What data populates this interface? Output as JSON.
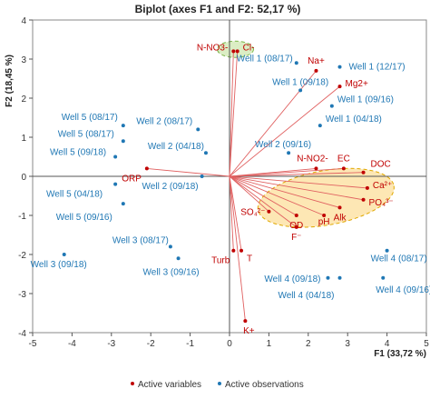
{
  "chart_data": {
    "type": "scatter",
    "title": "Biplot (axes F1 and F2: 52,17 %)",
    "xlabel": "F1 (33,72 %)",
    "ylabel": "F2 (18,45 %)",
    "xlim": [
      -5,
      5
    ],
    "ylim": [
      -4,
      4
    ],
    "xticks": [
      "-5",
      "-4",
      "-3",
      "-2",
      "-1",
      "0",
      "1",
      "2",
      "3",
      "4",
      "5"
    ],
    "yticks": [
      "-4",
      "-3",
      "-2",
      "-1",
      "0",
      "1",
      "2",
      "3",
      "4"
    ],
    "grid": false,
    "legend_position": "bottom",
    "series": [
      {
        "name": "Active variables",
        "color": "#c00000",
        "points": [
          {
            "label": "N-NO3-",
            "x": 0.1,
            "y": 3.2
          },
          {
            "label": "Cl-",
            "x": 0.2,
            "y": 3.2
          },
          {
            "label": "Na+",
            "x": 2.2,
            "y": 2.7
          },
          {
            "label": "Mg2+",
            "x": 2.8,
            "y": 2.3
          },
          {
            "label": "EC",
            "x": 2.9,
            "y": 0.2
          },
          {
            "label": "DOC",
            "x": 3.4,
            "y": 0.1
          },
          {
            "label": "N-NO2-",
            "x": 2.2,
            "y": 0.2
          },
          {
            "label": "Ca²⁺",
            "x": 3.5,
            "y": -0.3
          },
          {
            "label": "PO₄³⁻",
            "x": 3.4,
            "y": -0.6
          },
          {
            "label": "Alk",
            "x": 2.8,
            "y": -0.8
          },
          {
            "label": "pH",
            "x": 2.4,
            "y": -1.0
          },
          {
            "label": "OD",
            "x": 1.7,
            "y": -1.0
          },
          {
            "label": "F⁻",
            "x": 1.7,
            "y": -1.3
          },
          {
            "label": "SO₄²⁻",
            "x": 1.0,
            "y": -0.9
          },
          {
            "label": "ORP",
            "x": -2.1,
            "y": 0.2
          },
          {
            "label": "Turb",
            "x": 0.1,
            "y": -1.9
          },
          {
            "label": "T",
            "x": 0.3,
            "y": -1.9
          },
          {
            "label": "K+",
            "x": 0.4,
            "y": -3.7
          }
        ]
      },
      {
        "name": "Active observations",
        "color": "#1f77b4",
        "points": [
          {
            "label": "Well 1 (12/17)",
            "x": 2.8,
            "y": 2.8
          },
          {
            "label": "Well 1 (08/17)",
            "x": 1.7,
            "y": 2.9
          },
          {
            "label": "Well 1 (09/18)",
            "x": 1.8,
            "y": 2.2
          },
          {
            "label": "Well 1 (09/16)",
            "x": 2.6,
            "y": 1.8
          },
          {
            "label": "Well 1 (04/18)",
            "x": 2.3,
            "y": 1.3
          },
          {
            "label": "Well 2 (09/16)",
            "x": 1.5,
            "y": 0.6
          },
          {
            "label": "Well 2 (08/17)",
            "x": -0.8,
            "y": 1.2
          },
          {
            "label": "Well 2 (04/18)",
            "x": -0.6,
            "y": 0.6
          },
          {
            "label": "Well 2 (09/18)",
            "x": -0.7,
            "y": 0.0
          },
          {
            "label": "Well 5 (08/17)",
            "x": -2.7,
            "y": 1.3
          },
          {
            "label": "Well 5 (08/17)",
            "x": -2.7,
            "y": 0.9
          },
          {
            "label": "Well 5 (09/18)",
            "x": -2.9,
            "y": 0.5
          },
          {
            "label": "Well 5 (04/18)",
            "x": -2.9,
            "y": -0.2
          },
          {
            "label": "Well 5 (09/16)",
            "x": -2.7,
            "y": -0.7
          },
          {
            "label": "Well 3 (08/17)",
            "x": -1.5,
            "y": -1.8
          },
          {
            "label": "Well 3 (09/18)",
            "x": -4.2,
            "y": -2.0
          },
          {
            "label": "Well 3 (09/16)",
            "x": -1.3,
            "y": -2.1
          },
          {
            "label": "Well 4 (09/18)",
            "x": 2.5,
            "y": -2.6
          },
          {
            "label": "Well 4 (04/18)",
            "x": 2.8,
            "y": -2.6
          },
          {
            "label": "Well 4 (08/17)",
            "x": 4.0,
            "y": -1.9
          },
          {
            "label": "Well 4 (09/16)",
            "x": 3.9,
            "y": -2.6
          }
        ]
      }
    ]
  }
}
